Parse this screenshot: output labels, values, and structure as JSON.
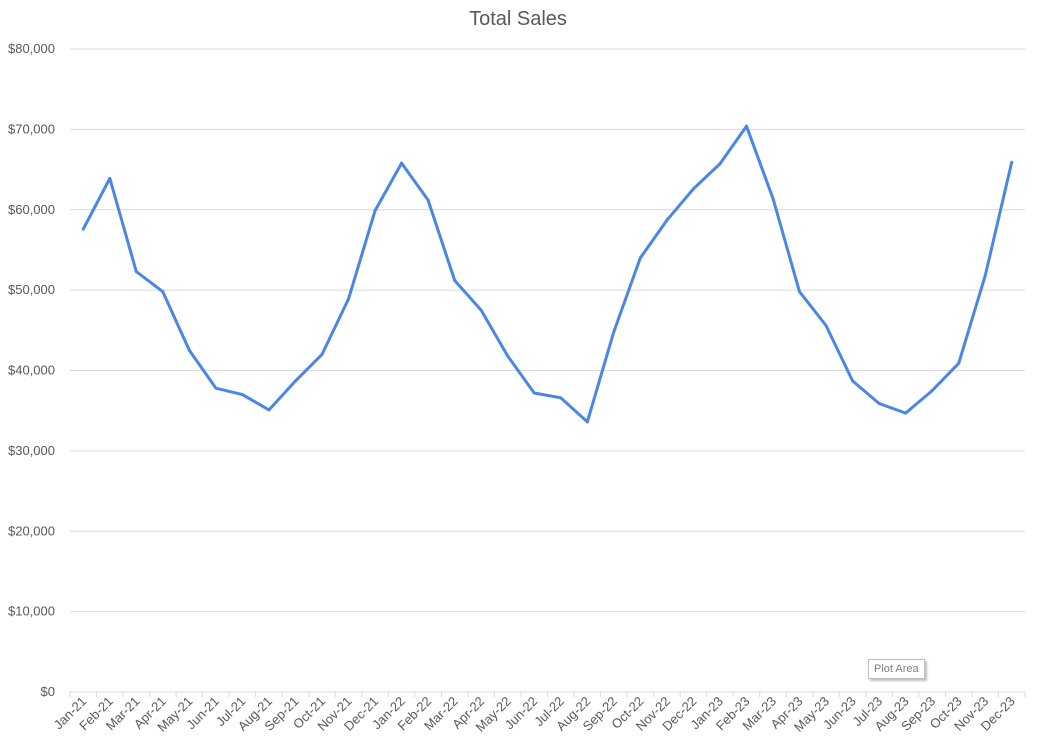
{
  "chart_data": {
    "type": "line",
    "title": "Total Sales",
    "xlabel": "",
    "ylabel": "",
    "categories": [
      "Jan-21",
      "Feb-21",
      "Mar-21",
      "Apr-21",
      "May-21",
      "Jun-21",
      "Jul-21",
      "Aug-21",
      "Sep-21",
      "Oct-21",
      "Nov-21",
      "Dec-21",
      "Jan-22",
      "Feb-22",
      "Mar-22",
      "Apr-22",
      "May-22",
      "Jun-22",
      "Jul-22",
      "Aug-22",
      "Sep-22",
      "Oct-22",
      "Nov-22",
      "Dec-22",
      "Jan-23",
      "Feb-23",
      "Mar-23",
      "Apr-23",
      "May-23",
      "Jun-23",
      "Jul-23",
      "Aug-23",
      "Sep-23",
      "Oct-23",
      "Nov-23",
      "Dec-23"
    ],
    "series": [
      {
        "values": [
          57600,
          63900,
          52300,
          49800,
          42500,
          37800,
          37000,
          35100,
          38700,
          42000,
          48900,
          59900,
          65800,
          61200,
          51200,
          47500,
          41800,
          37200,
          36600,
          33600,
          44800,
          54000,
          58700,
          62600,
          65700,
          70400,
          61400,
          49800,
          45600,
          38700,
          35900,
          34700,
          37500,
          40900,
          51800,
          65900
        ]
      }
    ],
    "ylim": [
      0,
      80000
    ],
    "y_ticks": [
      "$0",
      "$10,000",
      "$20,000",
      "$30,000",
      "$40,000",
      "$50,000",
      "$60,000",
      "$70,000",
      "$80,000"
    ],
    "y_tick_values": [
      0,
      10000,
      20000,
      30000,
      40000,
      50000,
      60000,
      70000,
      80000
    ],
    "grid": true,
    "legend": "none",
    "colors": {
      "line": "#4a86e8",
      "grid": "#d9d9d9",
      "text": "#595959"
    }
  },
  "tooltip": {
    "text": "Plot Area"
  }
}
